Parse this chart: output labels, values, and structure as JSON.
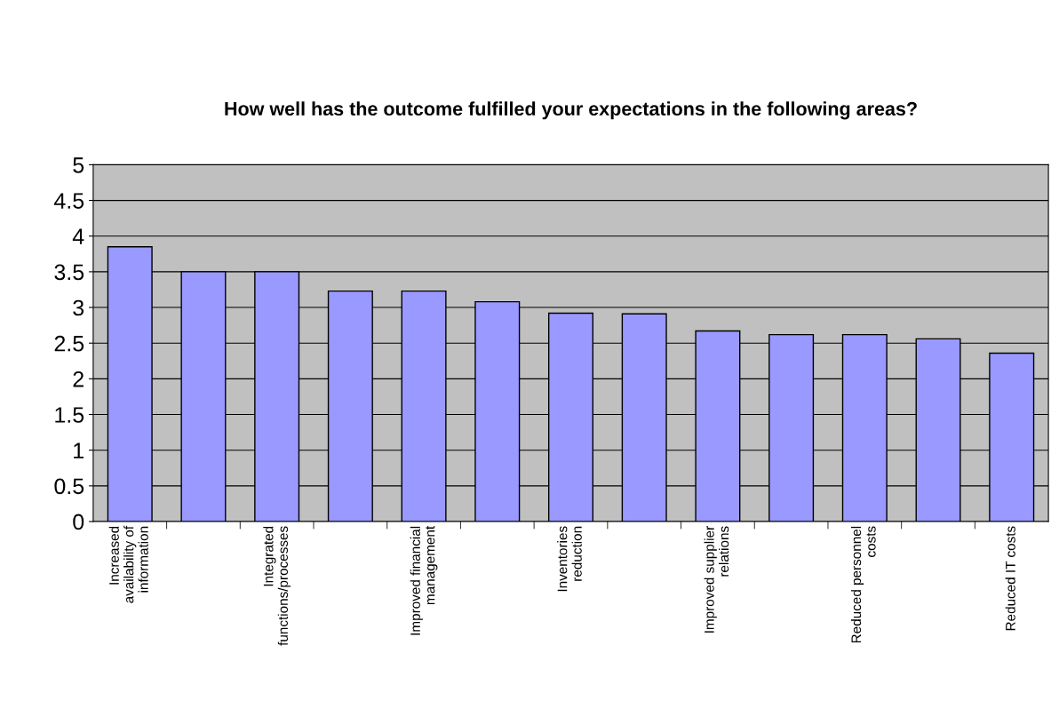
{
  "chart_data": {
    "type": "bar",
    "title": "How well has the outcome fulfilled your expectations in the following areas?",
    "categories": [
      "Increased availability of information",
      null,
      "Integrated functions/processes",
      null,
      "Improved financial management",
      null,
      "Inventories reduction",
      null,
      "Improved supplier relations",
      null,
      "Reduced personnel costs",
      null,
      "Reduced IT costs"
    ],
    "values": [
      3.85,
      3.5,
      3.5,
      3.23,
      3.23,
      3.08,
      2.92,
      2.91,
      2.67,
      2.62,
      2.62,
      2.56,
      2.36
    ],
    "color": "#9999ff",
    "ylim": [
      0,
      5
    ],
    "yticks": [
      0,
      0.5,
      1,
      1.5,
      2,
      2.5,
      3,
      3.5,
      4,
      4.5,
      5
    ],
    "grid": "y",
    "legend": false
  }
}
